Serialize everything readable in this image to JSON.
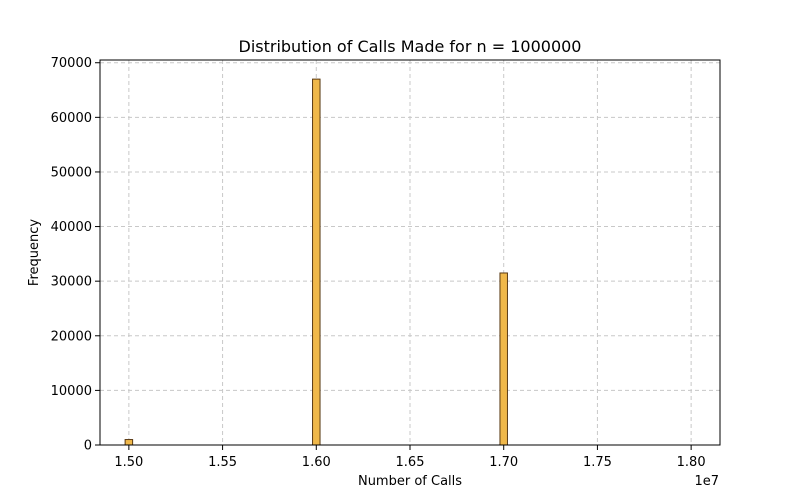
{
  "chart_data": {
    "type": "bar",
    "title": "Distribution of Calls Made for n = 1000000",
    "xlabel": "Number of Calls",
    "ylabel": "Frequency",
    "x_offset_label": "1e7",
    "xlim": [
      1.4846,
      1.8154
    ],
    "ylim": [
      0,
      70500
    ],
    "xticks": [
      1.5,
      1.55,
      1.6,
      1.65,
      1.7,
      1.75,
      1.8
    ],
    "xtick_labels": [
      "1.50",
      "1.55",
      "1.60",
      "1.65",
      "1.70",
      "1.75",
      "1.80"
    ],
    "yticks": [
      0,
      10000,
      20000,
      30000,
      40000,
      50000,
      60000,
      70000
    ],
    "ytick_labels": [
      "0",
      "10000",
      "20000",
      "30000",
      "40000",
      "50000",
      "60000",
      "70000"
    ],
    "grid": true,
    "bin_width": 0.004,
    "bins": [
      {
        "x": 1.5,
        "value": 1000
      },
      {
        "x": 1.6,
        "value": 67000
      },
      {
        "x": 1.7,
        "value": 31500
      }
    ],
    "colors": {
      "bar_fill": "#f0b84a",
      "bar_edge": "#5a3a14"
    }
  }
}
